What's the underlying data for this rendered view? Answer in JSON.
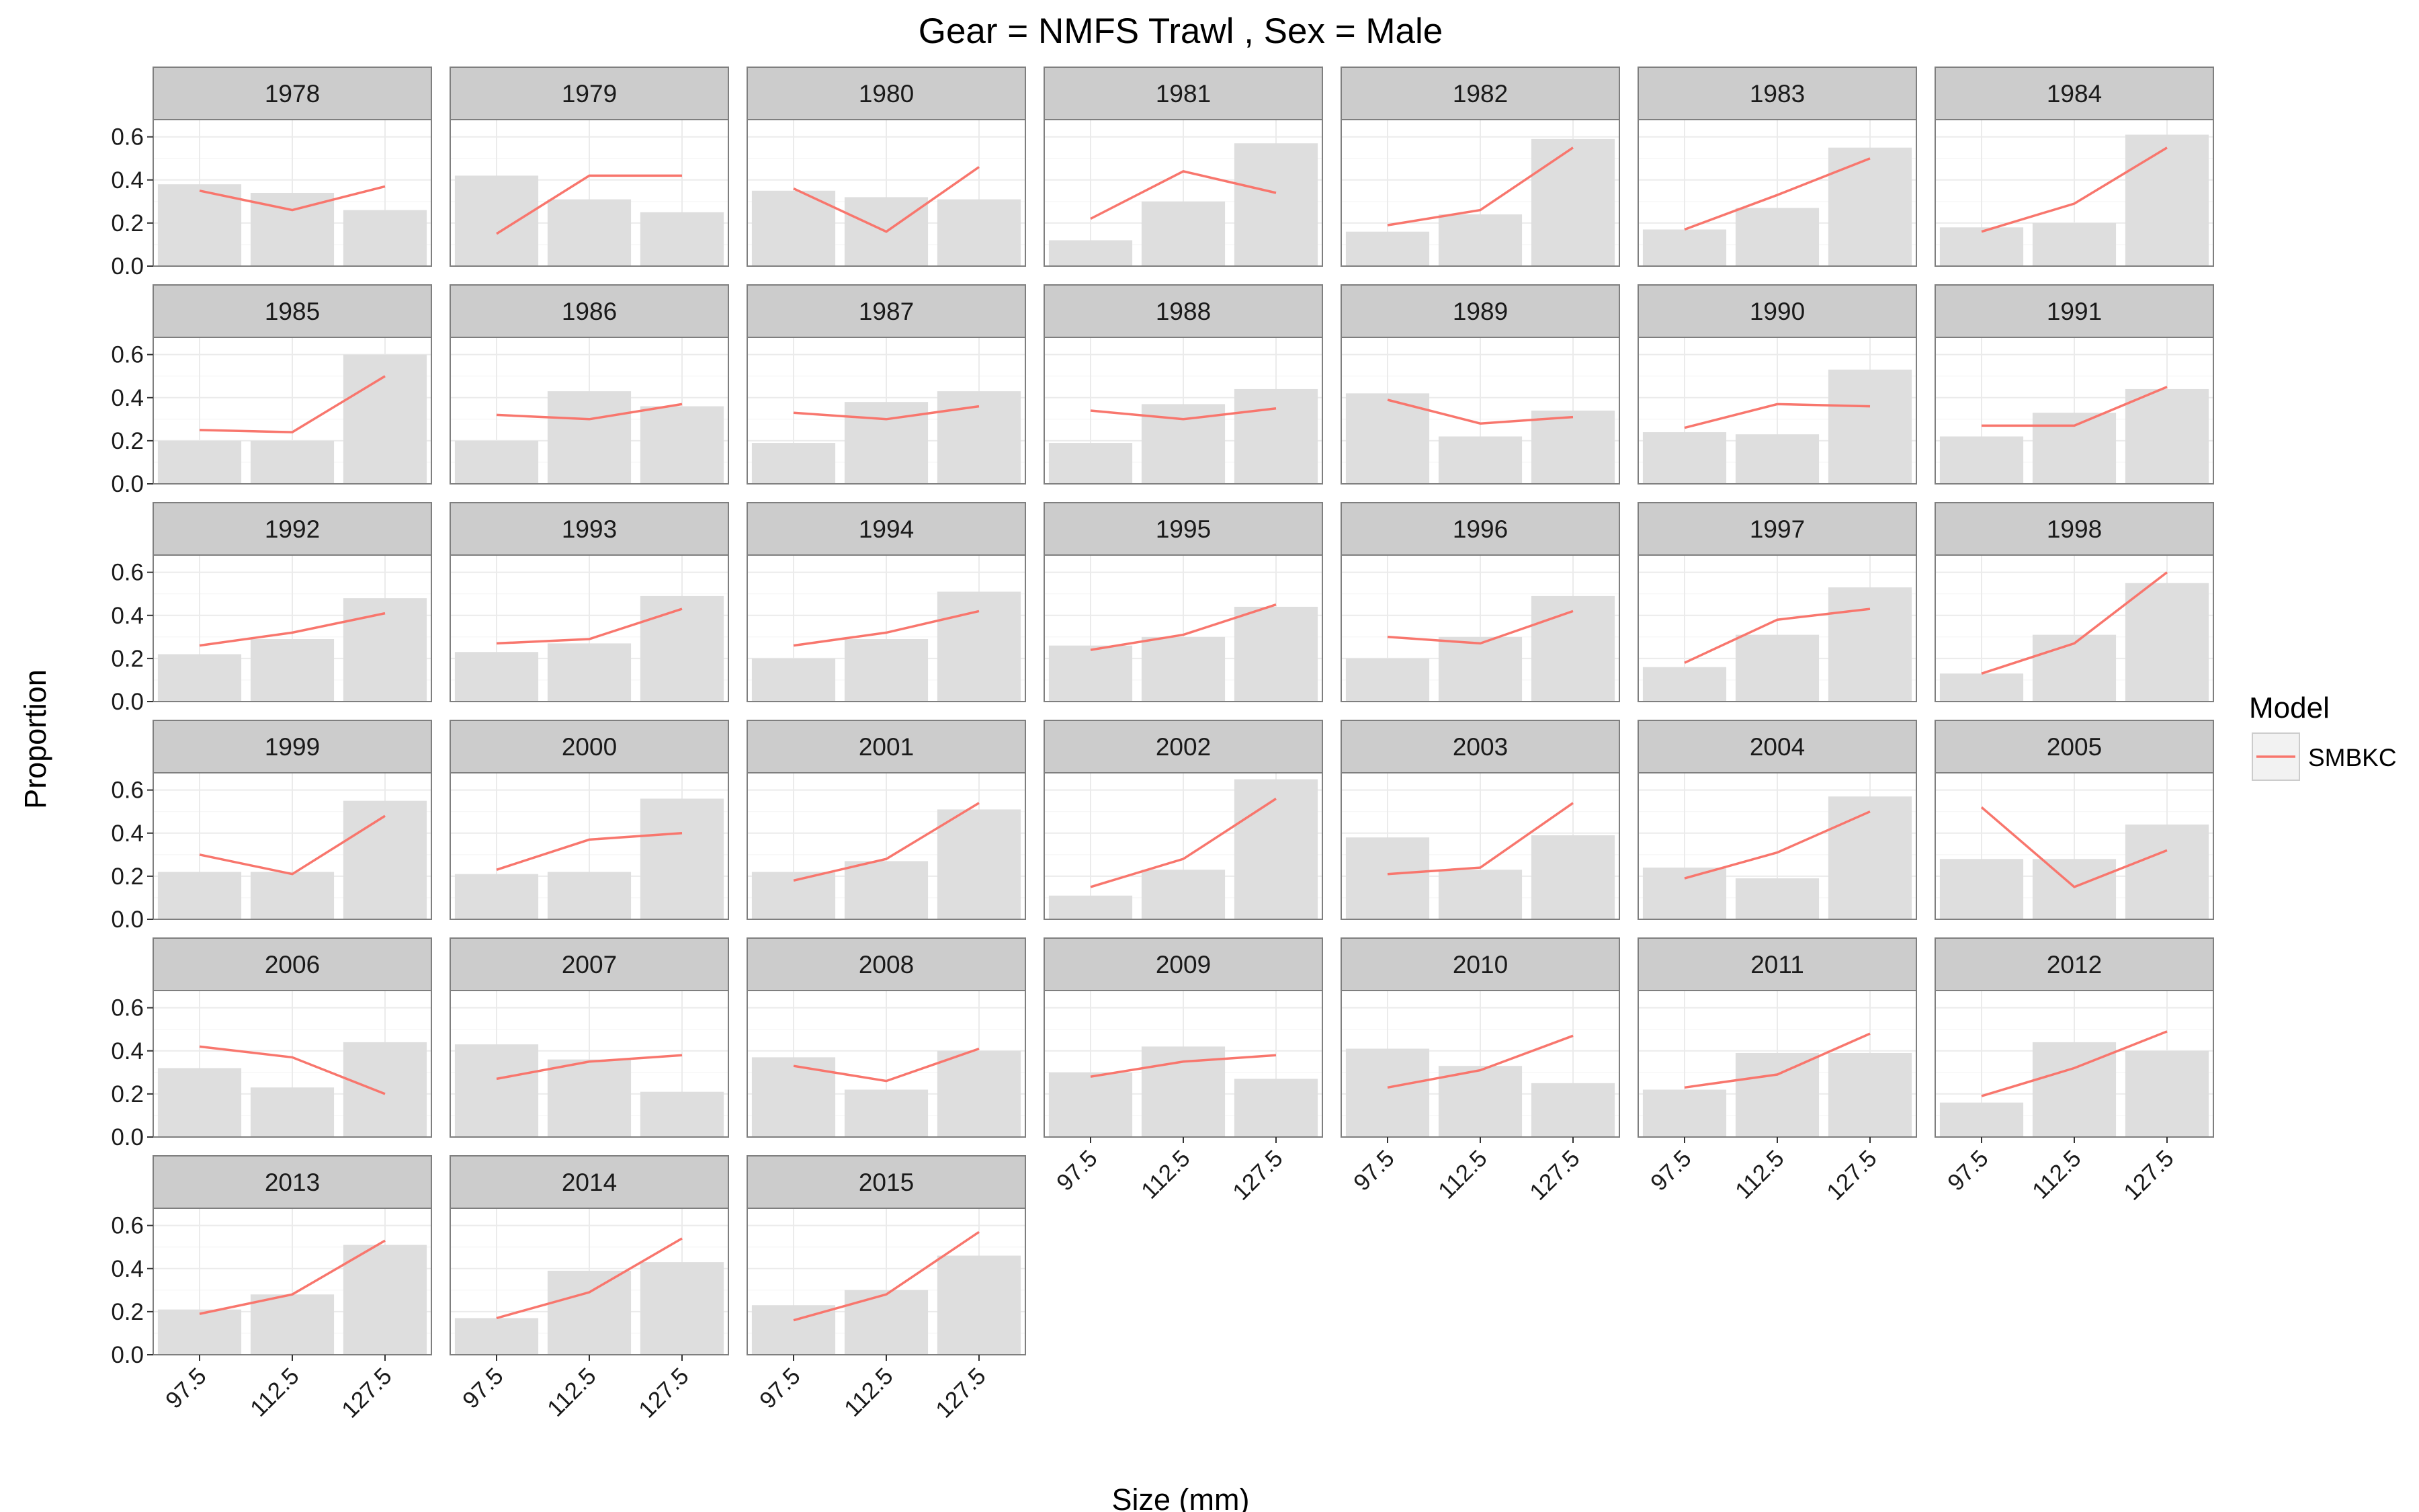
{
  "title": "Gear = NMFS Trawl , Sex = Male",
  "xlabel": "Size (mm)",
  "ylabel": "Proportion",
  "legend": {
    "title": "Model",
    "items": [
      {
        "name": "SMBKC",
        "color": "#F8766D"
      }
    ],
    "placement": "right"
  },
  "colors": {
    "panel_bg": "#ffffff",
    "strip_bg": "#cccccc",
    "grid": "#ebebeb",
    "bar": "#dedede",
    "border": "#7f7f7f",
    "line": "#F8766D"
  },
  "chart_data": {
    "type": "bar",
    "overlay": "line",
    "facet_by": "year",
    "ncol": 7,
    "categories": [
      "97.5",
      "112.5",
      "127.5"
    ],
    "ylim": [
      0,
      0.68
    ],
    "yticks": [
      0.0,
      0.2,
      0.4,
      0.6
    ],
    "ytick_labels": [
      "0.0",
      "0.2",
      "0.4",
      "0.6"
    ],
    "grid": true,
    "panels": [
      {
        "year": "1978",
        "observed": [
          0.38,
          0.34,
          0.26
        ],
        "model": [
          0.35,
          0.26,
          0.37
        ]
      },
      {
        "year": "1979",
        "observed": [
          0.42,
          0.31,
          0.25
        ],
        "model": [
          0.15,
          0.42,
          0.42
        ]
      },
      {
        "year": "1980",
        "observed": [
          0.35,
          0.32,
          0.31
        ],
        "model": [
          0.36,
          0.16,
          0.46
        ]
      },
      {
        "year": "1981",
        "observed": [
          0.12,
          0.3,
          0.57
        ],
        "model": [
          0.22,
          0.44,
          0.34
        ]
      },
      {
        "year": "1982",
        "observed": [
          0.16,
          0.24,
          0.59
        ],
        "model": [
          0.19,
          0.26,
          0.55
        ]
      },
      {
        "year": "1983",
        "observed": [
          0.17,
          0.27,
          0.55
        ],
        "model": [
          0.17,
          0.33,
          0.5
        ]
      },
      {
        "year": "1984",
        "observed": [
          0.18,
          0.2,
          0.61
        ],
        "model": [
          0.16,
          0.29,
          0.55
        ]
      },
      {
        "year": "1985",
        "observed": [
          0.2,
          0.2,
          0.6
        ],
        "model": [
          0.25,
          0.24,
          0.5
        ]
      },
      {
        "year": "1986",
        "observed": [
          0.2,
          0.43,
          0.36
        ],
        "model": [
          0.32,
          0.3,
          0.37
        ]
      },
      {
        "year": "1987",
        "observed": [
          0.19,
          0.38,
          0.43
        ],
        "model": [
          0.33,
          0.3,
          0.36
        ]
      },
      {
        "year": "1988",
        "observed": [
          0.19,
          0.37,
          0.44
        ],
        "model": [
          0.34,
          0.3,
          0.35
        ]
      },
      {
        "year": "1989",
        "observed": [
          0.42,
          0.22,
          0.34
        ],
        "model": [
          0.39,
          0.28,
          0.31
        ]
      },
      {
        "year": "1990",
        "observed": [
          0.24,
          0.23,
          0.53
        ],
        "model": [
          0.26,
          0.37,
          0.36
        ]
      },
      {
        "year": "1991",
        "observed": [
          0.22,
          0.33,
          0.44
        ],
        "model": [
          0.27,
          0.27,
          0.45
        ]
      },
      {
        "year": "1992",
        "observed": [
          0.22,
          0.29,
          0.48
        ],
        "model": [
          0.26,
          0.32,
          0.41
        ]
      },
      {
        "year": "1993",
        "observed": [
          0.23,
          0.27,
          0.49
        ],
        "model": [
          0.27,
          0.29,
          0.43
        ]
      },
      {
        "year": "1994",
        "observed": [
          0.2,
          0.29,
          0.51
        ],
        "model": [
          0.26,
          0.32,
          0.42
        ]
      },
      {
        "year": "1995",
        "observed": [
          0.26,
          0.3,
          0.44
        ],
        "model": [
          0.24,
          0.31,
          0.45
        ]
      },
      {
        "year": "1996",
        "observed": [
          0.2,
          0.3,
          0.49
        ],
        "model": [
          0.3,
          0.27,
          0.42
        ]
      },
      {
        "year": "1997",
        "observed": [
          0.16,
          0.31,
          0.53
        ],
        "model": [
          0.18,
          0.38,
          0.43
        ]
      },
      {
        "year": "1998",
        "observed": [
          0.13,
          0.31,
          0.55
        ],
        "model": [
          0.13,
          0.27,
          0.6
        ]
      },
      {
        "year": "1999",
        "observed": [
          0.22,
          0.22,
          0.55
        ],
        "model": [
          0.3,
          0.21,
          0.48
        ]
      },
      {
        "year": "2000",
        "observed": [
          0.21,
          0.22,
          0.56
        ],
        "model": [
          0.23,
          0.37,
          0.4
        ]
      },
      {
        "year": "2001",
        "observed": [
          0.22,
          0.27,
          0.51
        ],
        "model": [
          0.18,
          0.28,
          0.54
        ]
      },
      {
        "year": "2002",
        "observed": [
          0.11,
          0.23,
          0.65
        ],
        "model": [
          0.15,
          0.28,
          0.56
        ]
      },
      {
        "year": "2003",
        "observed": [
          0.38,
          0.23,
          0.39
        ],
        "model": [
          0.21,
          0.24,
          0.54
        ]
      },
      {
        "year": "2004",
        "observed": [
          0.24,
          0.19,
          0.57
        ],
        "model": [
          0.19,
          0.31,
          0.5
        ]
      },
      {
        "year": "2005",
        "observed": [
          0.28,
          0.28,
          0.44
        ],
        "model": [
          0.52,
          0.15,
          0.32
        ]
      },
      {
        "year": "2006",
        "observed": [
          0.32,
          0.23,
          0.44
        ],
        "model": [
          0.42,
          0.37,
          0.2
        ]
      },
      {
        "year": "2007",
        "observed": [
          0.43,
          0.36,
          0.21
        ],
        "model": [
          0.27,
          0.35,
          0.38
        ]
      },
      {
        "year": "2008",
        "observed": [
          0.37,
          0.22,
          0.4
        ],
        "model": [
          0.33,
          0.26,
          0.41
        ]
      },
      {
        "year": "2009",
        "observed": [
          0.3,
          0.42,
          0.27
        ],
        "model": [
          0.28,
          0.35,
          0.38
        ]
      },
      {
        "year": "2010",
        "observed": [
          0.41,
          0.33,
          0.25
        ],
        "model": [
          0.23,
          0.31,
          0.47
        ]
      },
      {
        "year": "2011",
        "observed": [
          0.22,
          0.39,
          0.39
        ],
        "model": [
          0.23,
          0.29,
          0.48
        ]
      },
      {
        "year": "2012",
        "observed": [
          0.16,
          0.44,
          0.4
        ],
        "model": [
          0.19,
          0.32,
          0.49
        ]
      },
      {
        "year": "2013",
        "observed": [
          0.21,
          0.28,
          0.51
        ],
        "model": [
          0.19,
          0.28,
          0.53
        ]
      },
      {
        "year": "2014",
        "observed": [
          0.17,
          0.39,
          0.43
        ],
        "model": [
          0.17,
          0.29,
          0.54
        ]
      },
      {
        "year": "2015",
        "observed": [
          0.23,
          0.3,
          0.46
        ],
        "model": [
          0.16,
          0.28,
          0.57
        ]
      }
    ]
  }
}
